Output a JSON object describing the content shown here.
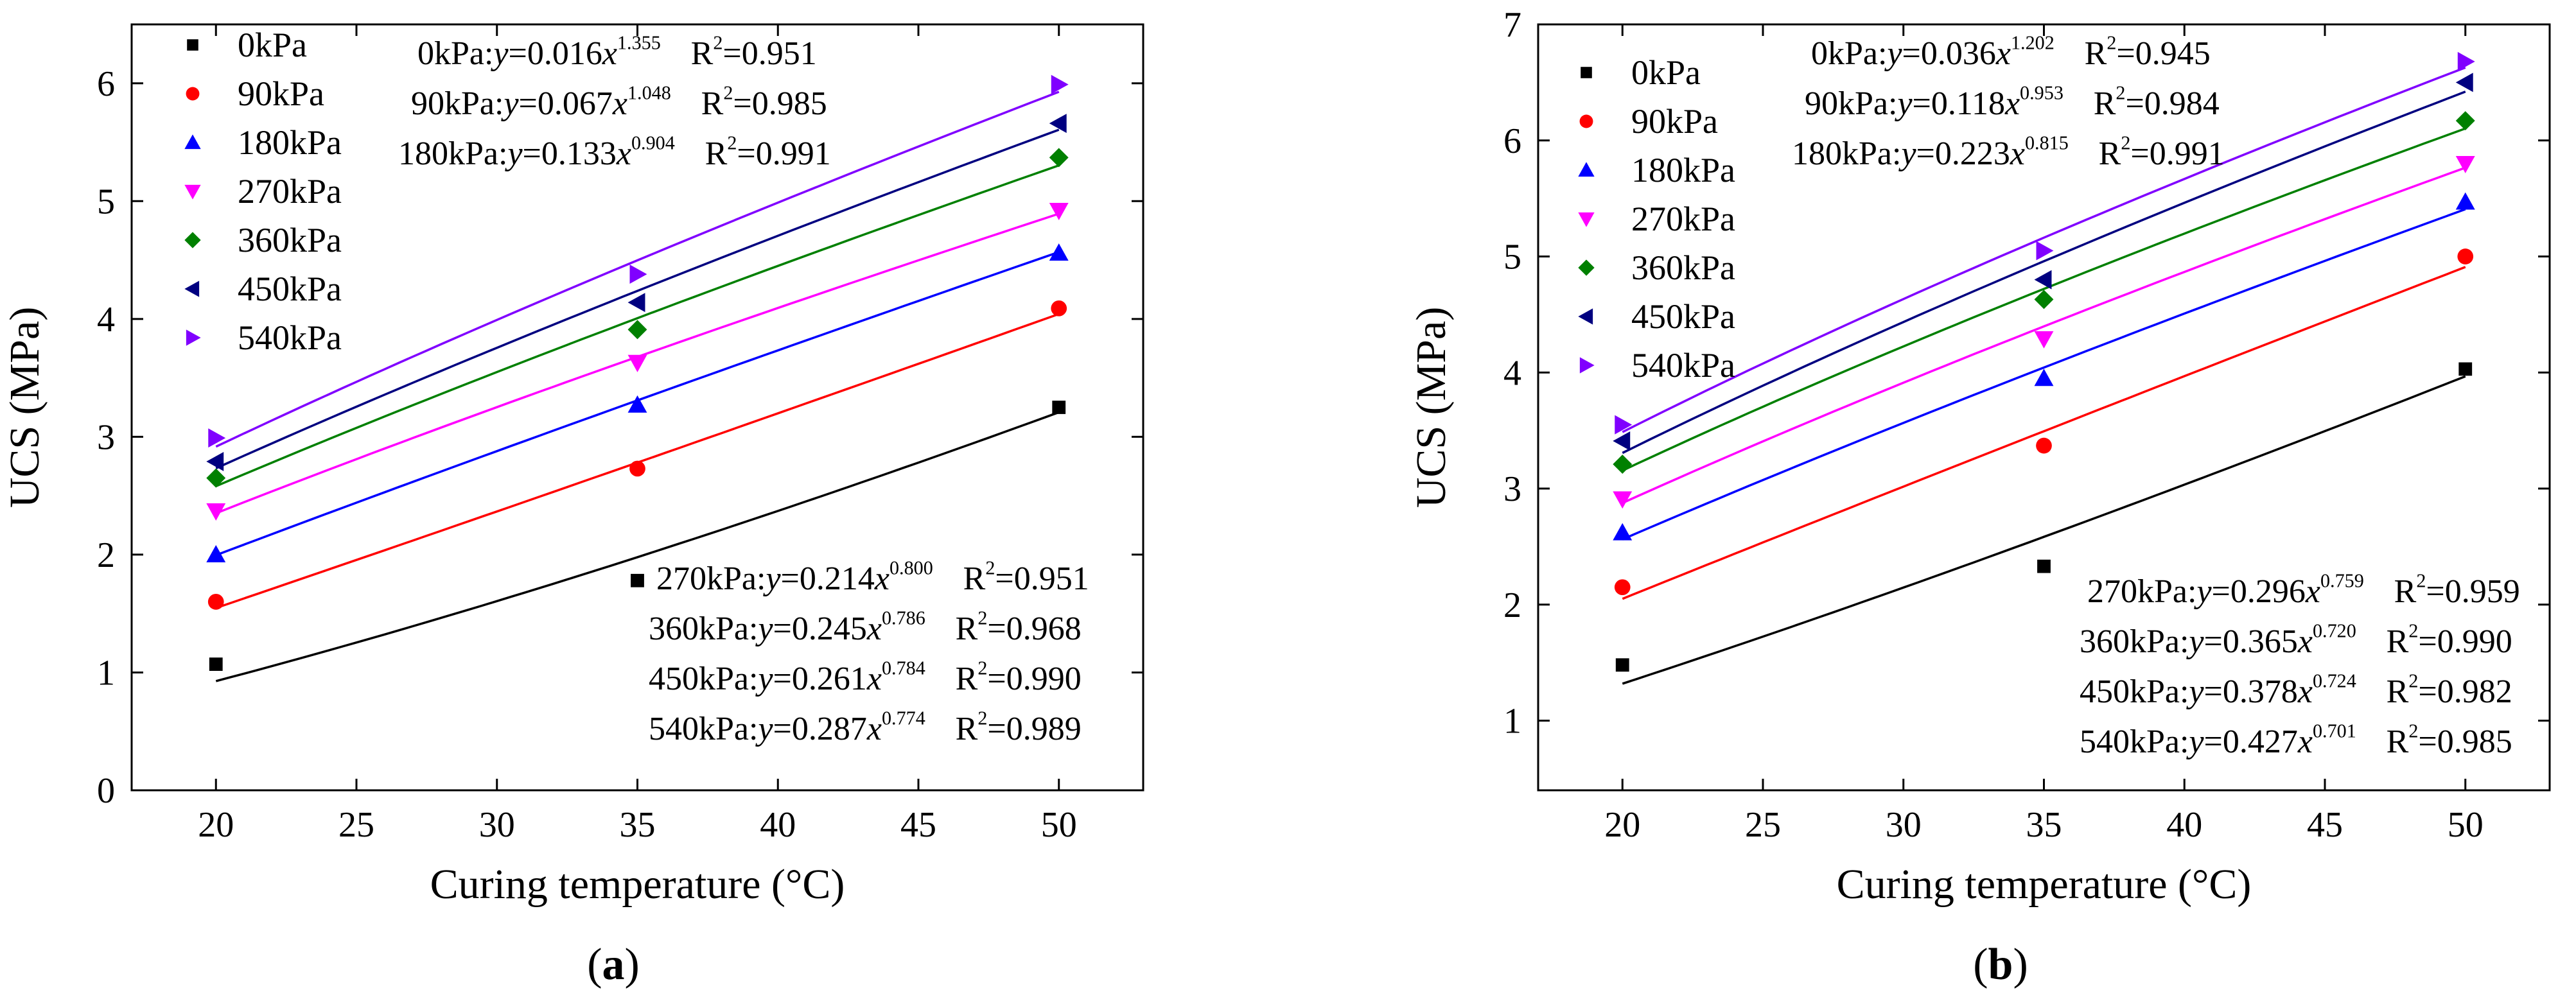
{
  "panels": [
    {
      "panel_label": "a",
      "chart_data": {
        "type": "scatter",
        "xlabel": "Curing temperature (°C)",
        "ylabel": "UCS (MPa)",
        "xlim": [
          17,
          53
        ],
        "ylim": [
          0,
          6.5
        ],
        "xticks": [
          20,
          25,
          30,
          35,
          40,
          45,
          50
        ],
        "yticks": [
          0,
          1,
          2,
          3,
          4,
          5,
          6
        ],
        "legend_position": "top-left",
        "series": [
          {
            "name": "0kPa",
            "color": "#000000",
            "marker": "square",
            "x": [
              20,
              35,
              50
            ],
            "y": [
              1.07,
              1.78,
              3.25
            ],
            "fit": {
              "a": 0.016,
              "b": 1.355
            }
          },
          {
            "name": "90kPa",
            "color": "#ff0000",
            "marker": "circle",
            "x": [
              20,
              35,
              50
            ],
            "y": [
              1.6,
              2.73,
              4.09
            ],
            "fit": {
              "a": 0.067,
              "b": 1.048
            }
          },
          {
            "name": "180kPa",
            "color": "#0000ff",
            "marker": "triangle-up",
            "x": [
              20,
              35,
              50
            ],
            "y": [
              2.0,
              3.27,
              4.56
            ],
            "fit": {
              "a": 0.133,
              "b": 0.904
            }
          },
          {
            "name": "270kPa",
            "color": "#ff00ff",
            "marker": "triangle-down",
            "x": [
              20,
              35,
              50
            ],
            "y": [
              2.37,
              3.63,
              4.92
            ],
            "fit": {
              "a": 0.214,
              "b": 0.8
            }
          },
          {
            "name": "360kPa",
            "color": "#008000",
            "marker": "diamond",
            "x": [
              20,
              35,
              50
            ],
            "y": [
              2.65,
              3.91,
              5.37
            ],
            "fit": {
              "a": 0.245,
              "b": 0.786
            }
          },
          {
            "name": "450kPa",
            "color": "#000080",
            "marker": "triangle-left",
            "x": [
              20,
              35,
              50
            ],
            "y": [
              2.79,
              4.14,
              5.66
            ],
            "fit": {
              "a": 0.261,
              "b": 0.784
            }
          },
          {
            "name": "540kPa",
            "color": "#8000ff",
            "marker": "triangle-right",
            "x": [
              20,
              35,
              50
            ],
            "y": [
              2.99,
              4.38,
              5.99
            ],
            "fit": {
              "a": 0.287,
              "b": 0.774
            }
          }
        ],
        "annotations_top": [
          {
            "label": "0kPa:",
            "coef": "0.016",
            "exp": "1.355",
            "r2": "0.951"
          },
          {
            "label": "90kPa:",
            "coef": "0.067",
            "exp": "1.048",
            "r2": "0.985"
          },
          {
            "label": "180kPa:",
            "coef": "0.133",
            "exp": "0.904",
            "r2": "0.991"
          }
        ],
        "annotations_bottom": [
          {
            "label": "270kPa:",
            "coef": "0.214",
            "exp": "0.800",
            "r2": "0.951"
          },
          {
            "label": "360kPa:",
            "coef": "0.245",
            "exp": "0.786",
            "r2": "0.968"
          },
          {
            "label": "450kPa:",
            "coef": "0.261",
            "exp": "0.784",
            "r2": "0.990"
          },
          {
            "label": "540kPa:",
            "coef": "0.287",
            "exp": "0.774",
            "r2": "0.989"
          }
        ]
      }
    },
    {
      "panel_label": "b",
      "chart_data": {
        "type": "scatter",
        "xlabel": "Curing temperature (°C)",
        "ylabel": "UCS (MPa)",
        "xlim": [
          17,
          53
        ],
        "ylim": [
          0.4,
          7
        ],
        "xticks": [
          20,
          25,
          30,
          35,
          40,
          45,
          50
        ],
        "yticks": [
          1,
          2,
          3,
          4,
          5,
          6,
          7
        ],
        "legend_position": "top-left",
        "series": [
          {
            "name": "0kPa",
            "color": "#000000",
            "marker": "square",
            "x": [
              20,
              35,
              50
            ],
            "y": [
              1.48,
              2.33,
              4.03
            ],
            "fit": {
              "a": 0.036,
              "b": 1.202
            }
          },
          {
            "name": "90kPa",
            "color": "#ff0000",
            "marker": "circle",
            "x": [
              20,
              35,
              50
            ],
            "y": [
              2.15,
              3.37,
              5.0
            ],
            "fit": {
              "a": 0.118,
              "b": 0.953
            }
          },
          {
            "name": "180kPa",
            "color": "#0000ff",
            "marker": "triangle-up",
            "x": [
              20,
              35,
              50
            ],
            "y": [
              2.62,
              3.95,
              5.47
            ],
            "fit": {
              "a": 0.223,
              "b": 0.815
            }
          },
          {
            "name": "270kPa",
            "color": "#ff00ff",
            "marker": "triangle-down",
            "x": [
              20,
              35,
              50
            ],
            "y": [
              2.91,
              4.29,
              5.8
            ],
            "fit": {
              "a": 0.296,
              "b": 0.759
            }
          },
          {
            "name": "360kPa",
            "color": "#008000",
            "marker": "diamond",
            "x": [
              20,
              35,
              50
            ],
            "y": [
              3.21,
              4.63,
              6.17
            ],
            "fit": {
              "a": 0.365,
              "b": 0.72
            }
          },
          {
            "name": "450kPa",
            "color": "#000080",
            "marker": "triangle-left",
            "x": [
              20,
              35,
              50
            ],
            "y": [
              3.41,
              4.8,
              6.5
            ],
            "fit": {
              "a": 0.378,
              "b": 0.724
            }
          },
          {
            "name": "540kPa",
            "color": "#8000ff",
            "marker": "triangle-right",
            "x": [
              20,
              35,
              50
            ],
            "y": [
              3.55,
              5.05,
              6.68
            ],
            "fit": {
              "a": 0.427,
              "b": 0.701
            }
          }
        ],
        "annotations_top": [
          {
            "label": "0kPa:",
            "coef": "0.036",
            "exp": "1.202",
            "r2": "0.945"
          },
          {
            "label": "90kPa:",
            "coef": "0.118",
            "exp": "0.953",
            "r2": "0.984"
          },
          {
            "label": "180kPa:",
            "coef": "0.223",
            "exp": "0.815",
            "r2": "0.991"
          }
        ],
        "annotations_bottom": [
          {
            "label": "270kPa:",
            "coef": "0.296",
            "exp": "0.759",
            "r2": "0.959"
          },
          {
            "label": "360kPa:",
            "coef": "0.365",
            "exp": "0.720",
            "r2": "0.990"
          },
          {
            "label": "450kPa:",
            "coef": "0.378",
            "exp": "0.724",
            "r2": "0.982"
          },
          {
            "label": "540kPa:",
            "coef": "0.427",
            "exp": "0.701",
            "r2": "0.985"
          }
        ]
      }
    }
  ]
}
